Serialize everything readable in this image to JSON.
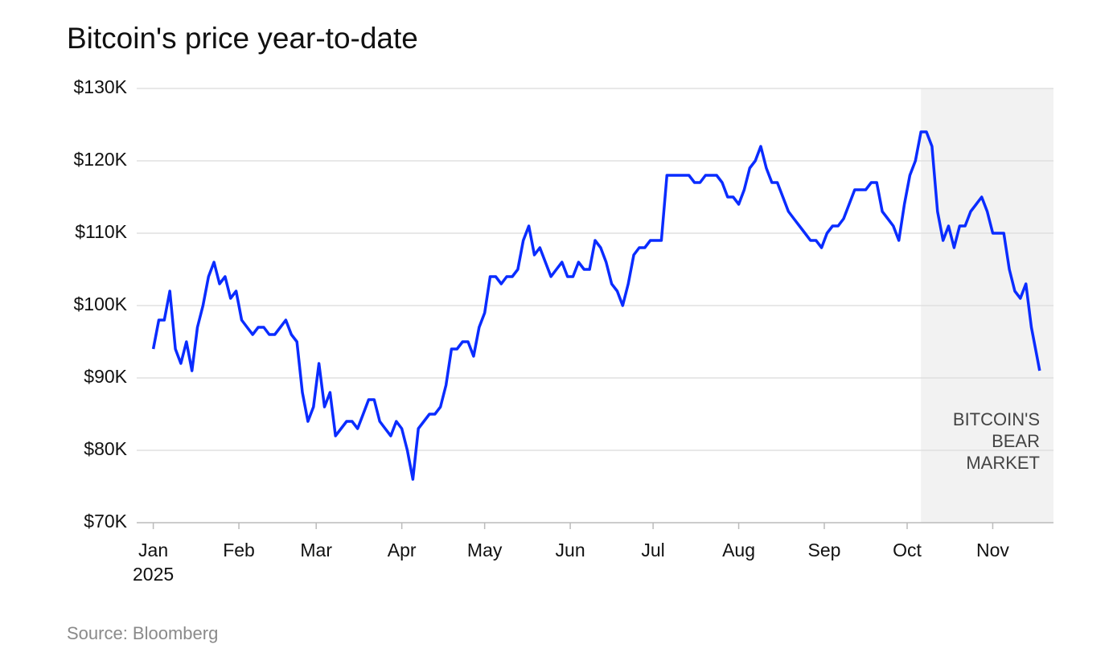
{
  "chart_data": {
    "type": "line",
    "title": "Bitcoin's price year-to-date",
    "source": "Source: Bloomberg",
    "x_year_label": "2025",
    "shade_start": 278,
    "shade_label": [
      "BITCOIN'S",
      "BEAR",
      "MARKET"
    ],
    "color": "#0a2cff",
    "grid": true,
    "x": [
      0,
      2,
      4,
      6,
      8,
      10,
      12,
      14,
      16,
      18,
      20,
      22,
      24,
      26,
      28,
      30,
      32,
      34,
      36,
      38,
      40,
      42,
      44,
      46,
      48,
      50,
      52,
      54,
      56,
      58,
      60,
      62,
      64,
      66,
      68,
      70,
      72,
      74,
      76,
      78,
      80,
      82,
      84,
      86,
      88,
      90,
      92,
      94,
      96,
      98,
      100,
      102,
      104,
      106,
      108,
      110,
      112,
      114,
      116,
      118,
      120,
      122,
      124,
      126,
      128,
      130,
      132,
      134,
      136,
      138,
      140,
      142,
      144,
      146,
      148,
      150,
      152,
      154,
      156,
      158,
      160,
      162,
      164,
      166,
      168,
      170,
      172,
      174,
      176,
      178,
      180,
      182,
      184,
      186,
      188,
      190,
      192,
      194,
      196,
      198,
      200,
      202,
      204,
      206,
      208,
      210,
      212,
      214,
      216,
      218,
      220,
      222,
      224,
      226,
      228,
      230,
      232,
      234,
      236,
      238,
      240,
      242,
      244,
      246,
      248,
      250,
      252,
      254,
      256,
      258,
      260,
      262,
      264,
      266,
      268,
      270,
      272,
      274,
      276,
      278,
      280,
      282,
      284,
      286,
      288,
      290,
      292,
      294,
      296,
      298,
      300,
      302,
      304,
      306,
      308,
      310,
      312,
      314,
      316,
      318,
      320,
      321
    ],
    "values": [
      94000,
      98000,
      98000,
      102000,
      94000,
      92000,
      95000,
      91000,
      97000,
      100000,
      104000,
      106000,
      103000,
      104000,
      101000,
      102000,
      98000,
      97000,
      96000,
      97000,
      97000,
      96000,
      96000,
      97000,
      98000,
      96000,
      95000,
      88000,
      84000,
      86000,
      92000,
      86000,
      88000,
      82000,
      83000,
      84000,
      84000,
      83000,
      85000,
      87000,
      87000,
      84000,
      83000,
      82000,
      84000,
      83000,
      80000,
      76000,
      83000,
      84000,
      85000,
      85000,
      86000,
      89000,
      94000,
      94000,
      95000,
      95000,
      93000,
      97000,
      99000,
      104000,
      104000,
      103000,
      104000,
      104000,
      105000,
      109000,
      111000,
      107000,
      108000,
      106000,
      104000,
      105000,
      106000,
      104000,
      104000,
      106000,
      105000,
      105000,
      109000,
      108000,
      106000,
      103000,
      102000,
      100000,
      103000,
      107000,
      108000,
      108000,
      109000,
      109000,
      109000,
      118000,
      118000,
      118000,
      118000,
      118000,
      117000,
      117000,
      118000,
      118000,
      118000,
      117000,
      115000,
      115000,
      114000,
      116000,
      119000,
      120000,
      122000,
      119000,
      117000,
      117000,
      115000,
      113000,
      112000,
      111000,
      110000,
      109000,
      109000,
      108000,
      110000,
      111000,
      111000,
      112000,
      114000,
      116000,
      116000,
      116000,
      117000,
      117000,
      113000,
      112000,
      111000,
      109000,
      114000,
      118000,
      120000,
      124000,
      124000,
      122000,
      113000,
      109000,
      111000,
      108000,
      111000,
      111000,
      113000,
      114000,
      115000,
      113000,
      110000,
      110000,
      110000,
      105000,
      102000,
      101000,
      103000,
      97000,
      93000,
      91000
    ],
    "xlim": [
      -6,
      326
    ],
    "xticks": [
      {
        "value": 0,
        "label": "Jan"
      },
      {
        "value": 31,
        "label": "Feb"
      },
      {
        "value": 59,
        "label": "Mar"
      },
      {
        "value": 90,
        "label": "Apr"
      },
      {
        "value": 120,
        "label": "May"
      },
      {
        "value": 151,
        "label": "Jun"
      },
      {
        "value": 181,
        "label": "Jul"
      },
      {
        "value": 212,
        "label": "Aug"
      },
      {
        "value": 243,
        "label": "Sep"
      },
      {
        "value": 273,
        "label": "Oct"
      },
      {
        "value": 304,
        "label": "Nov"
      }
    ],
    "ylim": [
      70000,
      130000
    ],
    "yticks": [
      {
        "value": 70000,
        "label": "$70K"
      },
      {
        "value": 80000,
        "label": "$80K"
      },
      {
        "value": 90000,
        "label": "$90K"
      },
      {
        "value": 100000,
        "label": "$100K"
      },
      {
        "value": 110000,
        "label": "$110K"
      },
      {
        "value": 120000,
        "label": "$120K"
      },
      {
        "value": 130000,
        "label": "$130K"
      }
    ]
  }
}
